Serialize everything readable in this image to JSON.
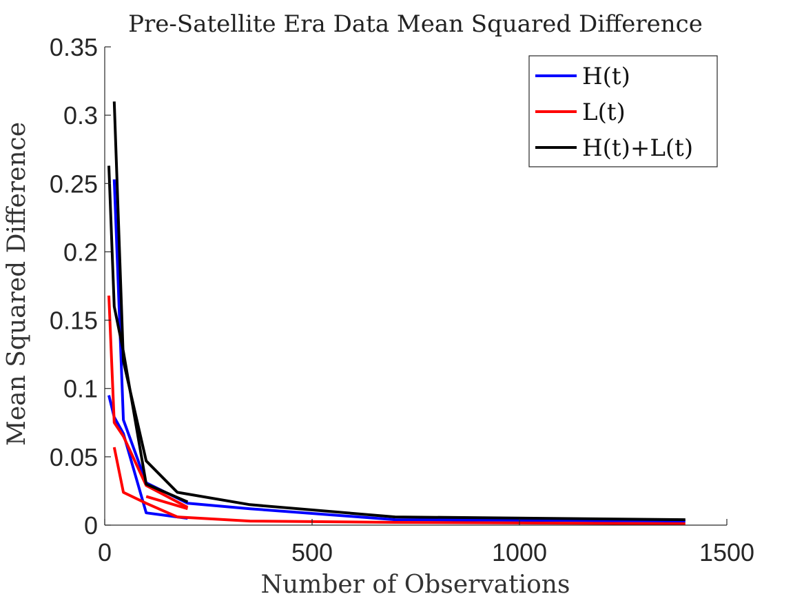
{
  "chart_data": {
    "type": "line",
    "title": "Pre-Satellite Era Data Mean Squared Difference",
    "xlabel": "Number of Observations",
    "ylabel": "Mean Squared Difference",
    "xlim": [
      0,
      1500
    ],
    "ylim": [
      0,
      0.35
    ],
    "xticks": [
      0,
      500,
      1000,
      1500
    ],
    "xtick_labels": [
      "0",
      "500",
      "1000",
      "1500"
    ],
    "yticks": [
      0,
      0.05,
      0.1,
      0.15,
      0.2,
      0.25,
      0.3,
      0.35
    ],
    "ytick_labels": [
      "0",
      "0.05",
      "0.1",
      "0.15",
      "0.2",
      "0.25",
      "0.3",
      "0.35"
    ],
    "grid": false,
    "legend_position": "top-right",
    "series": [
      {
        "name": "H(t)",
        "color": "#0000ff",
        "lines": [
          [
            [
              10,
              0.095
            ],
            [
              23,
              0.079
            ],
            [
              45,
              0.067
            ],
            [
              100,
              0.009
            ],
            [
              200,
              0.005
            ]
          ],
          [
            [
              23,
              0.253
            ],
            [
              45,
              0.077
            ],
            [
              100,
              0.031
            ],
            [
              200,
              0.016
            ],
            [
              350,
              0.012
            ],
            [
              700,
              0.004
            ],
            [
              1400,
              0.003
            ]
          ]
        ]
      },
      {
        "name": "L(t)",
        "color": "#ff0000",
        "lines": [
          [
            [
              10,
              0.168
            ],
            [
              23,
              0.075
            ],
            [
              45,
              0.065
            ],
            [
              100,
              0.029
            ],
            [
              200,
              0.013
            ]
          ],
          [
            [
              23,
              0.057
            ],
            [
              45,
              0.024
            ],
            [
              100,
              0.016
            ],
            [
              175,
              0.006
            ],
            [
              350,
              0.003
            ],
            [
              700,
              0.002
            ],
            [
              1400,
              0.001
            ]
          ],
          [
            [
              100,
              0.021
            ],
            [
              200,
              0.012
            ]
          ]
        ]
      },
      {
        "name": "H(t)+L(t)",
        "color": "#000000",
        "lines": [
          [
            [
              10,
              0.263
            ],
            [
              23,
              0.16
            ],
            [
              45,
              0.127
            ],
            [
              100,
              0.03
            ],
            [
              200,
              0.017
            ]
          ],
          [
            [
              23,
              0.31
            ],
            [
              45,
              0.12
            ],
            [
              100,
              0.047
            ],
            [
              175,
              0.024
            ],
            [
              350,
              0.015
            ],
            [
              700,
              0.006
            ],
            [
              1400,
              0.004
            ]
          ]
        ]
      }
    ]
  }
}
